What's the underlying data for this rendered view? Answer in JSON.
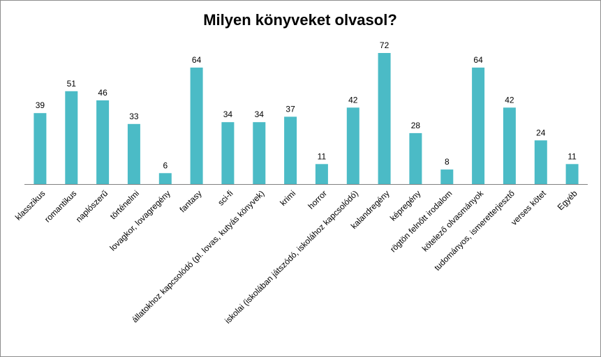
{
  "chart_data": {
    "type": "bar",
    "title": "Milyen könyveket olvasol?",
    "categories": [
      "klasszikus",
      "romantikus",
      "naplószerű",
      "történelmi",
      "lovagkor, lovagregény",
      "fantasy",
      "sci-fi",
      "állatokhoz kapcsolódó (pl. lovas, kutyás könyvek)",
      "krimi",
      "horror",
      "iskolai (iskolában játszódó, iskolához kapcsolódó)",
      "kalandregény",
      "képregény",
      "rögtön felnőtt irodalom",
      "kötelező olvasmányok",
      "tudományos, ismeretterjesztő",
      "verses kötet",
      "Egyéb"
    ],
    "values": [
      39,
      51,
      46,
      33,
      6,
      64,
      34,
      34,
      37,
      11,
      42,
      72,
      28,
      8,
      64,
      42,
      24,
      11
    ],
    "ylim": [
      0,
      72
    ],
    "grid": false,
    "legend": "none",
    "data_labels": true,
    "bar_color": "#4bbbc6"
  }
}
